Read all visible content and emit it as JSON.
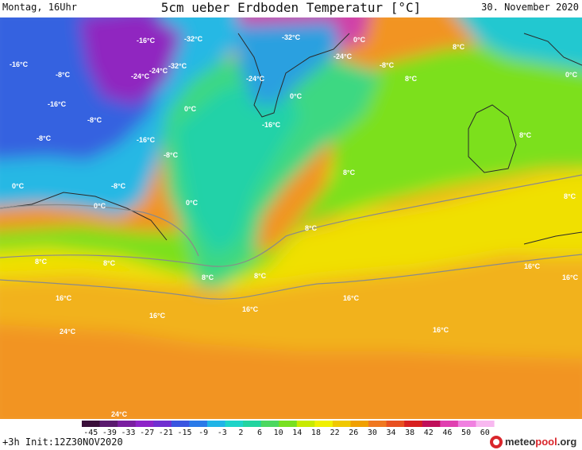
{
  "header": {
    "left": "Montag, 16Uhr",
    "title": "5cm ueber Erdboden Temperatur [°C]",
    "right": "30. November 2020"
  },
  "map": {
    "labels": [
      "-32°C",
      "-24°C",
      "-16°C",
      "-8°C",
      "0°C",
      "8°C",
      "16°C",
      "24°C"
    ]
  },
  "scale": {
    "ticks": [
      "-45",
      "-39",
      "-33",
      "-27",
      "-21",
      "-15",
      "-9",
      "-3",
      "2",
      "6",
      "10",
      "14",
      "18",
      "22",
      "26",
      "30",
      "34",
      "38",
      "42",
      "46",
      "50",
      "60"
    ],
    "colors": [
      "#3a0f3a",
      "#5a1a6e",
      "#7a1fa0",
      "#8e24c8",
      "#7030d0",
      "#3a55e0",
      "#2a7ae8",
      "#20b4e6",
      "#1ed4c8",
      "#22d4a0",
      "#4cd860",
      "#78e020",
      "#c8ea00",
      "#f0f000",
      "#f0c800",
      "#f0a000",
      "#f07820",
      "#e85020",
      "#d82020",
      "#c0105a",
      "#e040b0",
      "#f080e0",
      "#f8b8f0"
    ]
  },
  "footer": {
    "init": "+3h  Init:12Z30NOV2020",
    "logo_pre": "meteo",
    "logo_accent": "pool",
    "logo_post": ".org"
  }
}
